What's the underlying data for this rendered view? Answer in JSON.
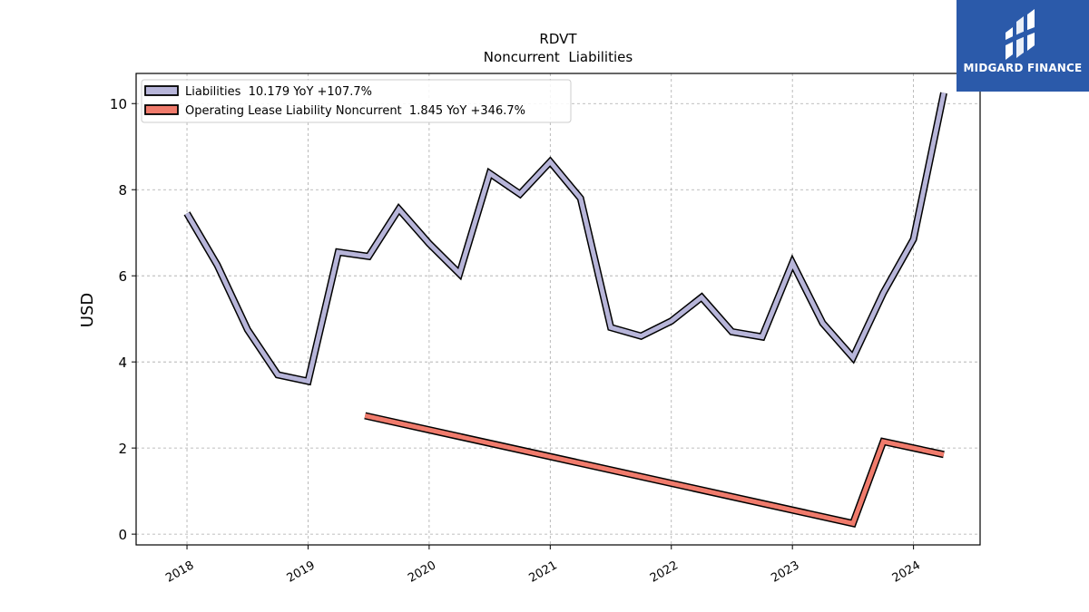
{
  "brand": {
    "name": "MIDGARD FINANCE",
    "color": "#2b5aaa"
  },
  "chart_data": {
    "type": "line",
    "title": "RDVT",
    "subtitle": "Noncurrent  Liabilities",
    "xlabel": "",
    "ylabel": "USD",
    "ylim": [
      -0.25,
      10.7
    ],
    "xlim": [
      2017.58,
      2024.55
    ],
    "yticks": [
      0,
      2,
      4,
      6,
      8,
      10
    ],
    "xticks": [
      2018,
      2019,
      2020,
      2021,
      2022,
      2023,
      2024
    ],
    "grid": true,
    "legend_position": "upper-left",
    "series": [
      {
        "name": "Liabilities",
        "legend_label": "Liabilities  10.179 YoY +107.7%",
        "color": "#b7b5d9",
        "x": [
          2018.0,
          2018.25,
          2018.5,
          2018.75,
          2019.0,
          2019.25,
          2019.5,
          2019.75,
          2020.0,
          2020.25,
          2020.5,
          2020.75,
          2021.0,
          2021.25,
          2021.5,
          2021.75,
          2022.0,
          2022.25,
          2022.5,
          2022.75,
          2023.0,
          2023.25,
          2023.5,
          2023.75,
          2024.0,
          2024.25
        ],
        "values": [
          7.45,
          6.25,
          4.75,
          3.7,
          3.55,
          6.55,
          6.45,
          7.55,
          6.75,
          6.05,
          8.38,
          7.9,
          8.65,
          7.8,
          4.8,
          4.6,
          4.95,
          5.5,
          4.7,
          4.58,
          6.3,
          4.9,
          4.1,
          5.6,
          6.85,
          10.25
        ]
      },
      {
        "name": "Operating Lease Liability Noncurrent",
        "legend_label": "Operating Lease Liability Noncurrent  1.845 YoY +346.7%",
        "color": "#f07b6c",
        "x": [
          2019.47,
          2023.5,
          2023.75,
          2024.25
        ],
        "values": [
          2.75,
          0.25,
          2.15,
          1.85
        ]
      }
    ]
  }
}
